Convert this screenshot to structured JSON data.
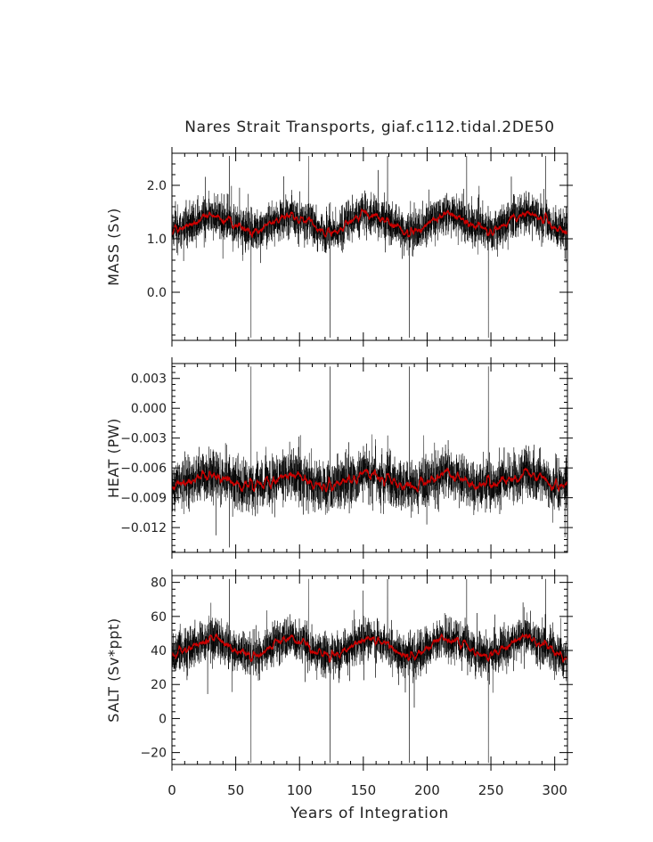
{
  "title": "Nares Strait Transports, giaf.c112.tidal.2DE50",
  "xlabel": "Years of Integration",
  "colors": {
    "raw": "#000000",
    "smooth": "#cc0000"
  },
  "chart_data": [
    {
      "type": "line",
      "name": "mass",
      "ylabel": "MASS (Sv)",
      "ylim": [
        -0.9,
        2.6
      ],
      "xlim": [
        0,
        310
      ],
      "yticks": [
        0.0,
        1.0,
        2.0
      ],
      "ytick_labels": [
        "0.0",
        "1.0",
        "2.0"
      ],
      "xticks": [
        0,
        50,
        100,
        150,
        200,
        250,
        300
      ],
      "mean": 1.3,
      "noise": 0.28,
      "cycle_amplitude": 0.15,
      "cycle_period_years": 62,
      "spikes_up_at_years": [
        45,
        107,
        169,
        231,
        293
      ],
      "spikes_up_to": 2.55,
      "spikes_down_at_years": [
        62,
        124,
        186,
        248
      ],
      "spikes_down_to": -0.85
    },
    {
      "type": "line",
      "name": "heat",
      "ylabel": "HEAT (PW)",
      "ylim": [
        -0.0145,
        0.0045
      ],
      "xlim": [
        0,
        310
      ],
      "yticks": [
        -0.012,
        -0.009,
        -0.006,
        -0.003,
        0.0,
        0.003
      ],
      "ytick_labels": [
        "-0.012",
        "-0.009",
        "-0.006",
        "-0.003",
        "0.000",
        "0.003"
      ],
      "xticks": [
        0,
        50,
        100,
        150,
        200,
        250,
        300
      ],
      "mean": -0.0073,
      "noise": 0.0018,
      "cycle_amplitude": 0.0006,
      "cycle_period_years": 62,
      "spikes_up_at_years": [
        62,
        124,
        186,
        248
      ],
      "spikes_up_to": 0.0042,
      "spikes_down_at_years": [
        45
      ],
      "spikes_down_to": -0.014
    },
    {
      "type": "line",
      "name": "salt",
      "ylabel": "SALT (Sv*ppt)",
      "ylim": [
        -27,
        84
      ],
      "xlim": [
        0,
        310
      ],
      "yticks": [
        -20,
        0,
        20,
        40,
        60,
        80
      ],
      "ytick_labels": [
        "-20",
        "0",
        "20",
        "40",
        "60",
        "80"
      ],
      "xticks": [
        0,
        50,
        100,
        150,
        200,
        250,
        300
      ],
      "xtick_labels": [
        "0",
        "50",
        "100",
        "150",
        "200",
        "250",
        "300"
      ],
      "mean": 42,
      "noise": 9,
      "cycle_amplitude": 5,
      "cycle_period_years": 62,
      "spikes_up_at_years": [
        45,
        107,
        169,
        231,
        293
      ],
      "spikes_up_to": 82,
      "spikes_down_at_years": [
        62,
        124,
        186,
        248
      ],
      "spikes_down_to": -26
    }
  ]
}
